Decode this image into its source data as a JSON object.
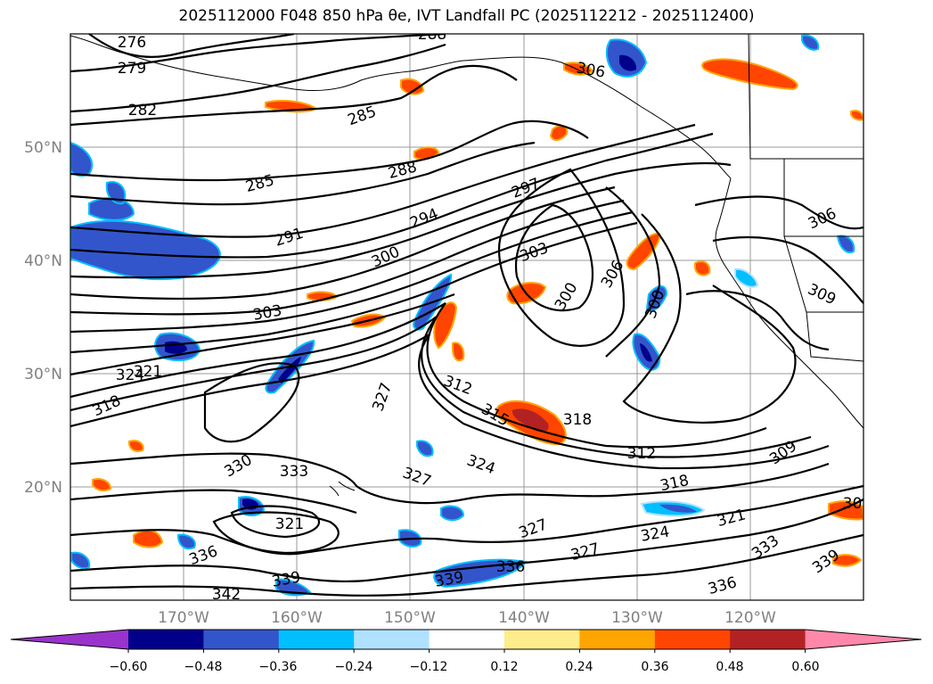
{
  "title": "2025112000 F048 850 hPa θe, IVT Landfall PC (2025112212 - 2025112400)",
  "latitude_labels": [
    "50°N",
    "40°N",
    "30°N",
    "20°N"
  ],
  "longitude_labels": [
    "170°W",
    "160°W",
    "150°W",
    "140°W",
    "130°W",
    "120°W"
  ],
  "contour_labels": [
    "276",
    "279",
    "282",
    "285",
    "288",
    "285",
    "291",
    "294",
    "297",
    "300",
    "303",
    "303",
    "306",
    "300",
    "306",
    "300",
    "309",
    "312",
    "315",
    "318",
    "321",
    "324",
    "318",
    "327",
    "327",
    "330",
    "333",
    "324",
    "321",
    "336",
    "339",
    "342",
    "339",
    "336",
    "327",
    "327",
    "324",
    "321",
    "318",
    "312",
    "309",
    "333",
    "336",
    "339",
    "288",
    "306",
    "309"
  ],
  "colorbar": {
    "ticks": [
      "−0.60",
      "−0.48",
      "−0.36",
      "−0.24",
      "−0.12",
      "0.12",
      "0.24",
      "0.36",
      "0.48",
      "0.60"
    ],
    "colors": [
      "#9933cc",
      "#00008b",
      "#3355cc",
      "#00bfff",
      "#b0e2ff",
      "#ffffff",
      "#ffec8b",
      "#ffa500",
      "#ff4500",
      "#b22222",
      "#ff88aa"
    ]
  }
}
